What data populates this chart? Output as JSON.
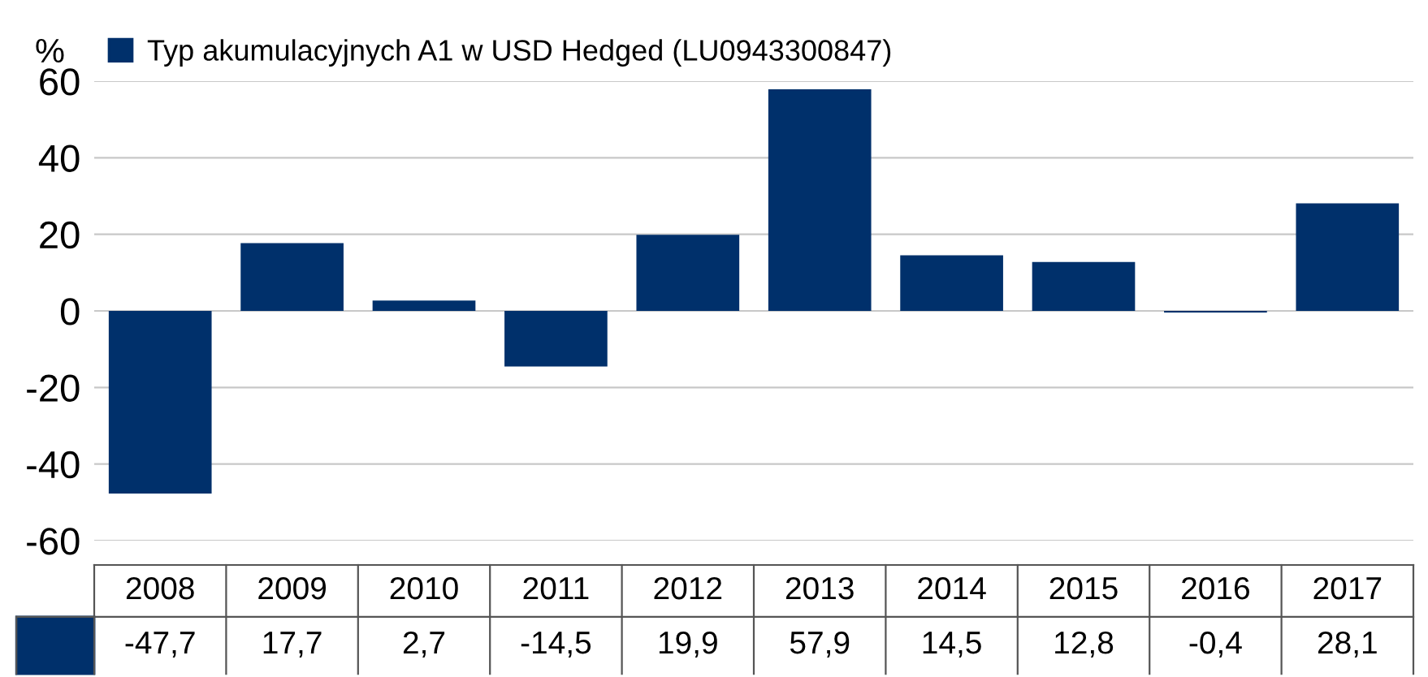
{
  "chart_data": {
    "type": "bar",
    "ylabel": "%",
    "categories": [
      "2008",
      "2009",
      "2010",
      "2011",
      "2012",
      "2013",
      "2014",
      "2015",
      "2016",
      "2017"
    ],
    "series": [
      {
        "name": "Typ akumulacyjnych A1 w USD Hedged (LU0943300847)",
        "color": "#00306b",
        "values": [
          -47.7,
          17.7,
          2.7,
          -14.5,
          19.9,
          57.9,
          14.5,
          12.8,
          -0.4,
          28.1
        ],
        "value_labels": [
          "-47,7",
          "17,7",
          "2,7",
          "-14,5",
          "19,9",
          "57,9",
          "14,5",
          "12,8",
          "-0,4",
          "28,1"
        ]
      }
    ],
    "ylim": [
      -60,
      60
    ],
    "yticks": [
      -60,
      -40,
      -20,
      0,
      20,
      40,
      60
    ],
    "grid": "y",
    "legend": "top left"
  }
}
